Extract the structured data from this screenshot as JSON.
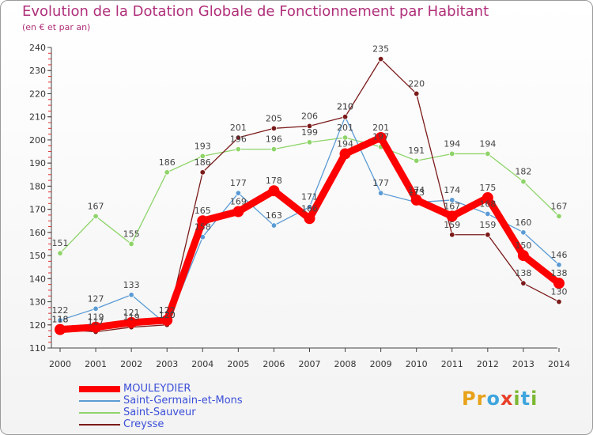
{
  "title": "Evolution de la Dotation Globale de Fonctionnement par Habitant",
  "subtitle": "(en € et par an)",
  "logo": {
    "text": "Proxiti",
    "letters": [
      {
        "char": "P",
        "color": "#e8a21a"
      },
      {
        "char": "r",
        "color": "#e8a21a"
      },
      {
        "char": "o",
        "color": "#3fa5dd"
      },
      {
        "char": "x",
        "color": "#e8402a"
      },
      {
        "char": "i",
        "color": "#7cb833"
      },
      {
        "char": "t",
        "color": "#3fa5dd"
      },
      {
        "char": "i",
        "color": "#7cb833"
      }
    ]
  },
  "chart_data": {
    "type": "line",
    "x": [
      "2000",
      "2001",
      "2002",
      "2003",
      "2004",
      "2005",
      "2006",
      "2007",
      "2008",
      "2009",
      "2010",
      "2011",
      "2012",
      "2013",
      "2014"
    ],
    "ylim": [
      110,
      240
    ],
    "yticks": [
      110,
      120,
      130,
      140,
      150,
      160,
      170,
      180,
      190,
      200,
      210,
      220,
      230,
      240
    ],
    "grid": false,
    "legend_position": "bottom-left",
    "series": [
      {
        "name": "MOULEYDIER",
        "color": "#ff0000",
        "emphasis": true,
        "values": [
          118,
          119,
          121,
          122,
          165,
          169,
          178,
          166,
          194,
          201,
          174,
          167,
          175,
          150,
          138
        ],
        "labels": [
          "118",
          "119",
          "121",
          "122",
          "165",
          "169",
          "178",
          "166",
          "194",
          "201",
          "174",
          "167",
          "175",
          "150",
          "138"
        ]
      },
      {
        "name": "Saint-Germain-et-Mons",
        "color": "#5b9bd5",
        "values": [
          122,
          127,
          133,
          120,
          158,
          177,
          163,
          171,
          210,
          177,
          173,
          174,
          168,
          160,
          146
        ],
        "labels": [
          "122",
          "127",
          "133",
          "120",
          "158",
          "177",
          "163",
          "171",
          "210",
          "177",
          "173",
          "174",
          "168",
          "160",
          "146"
        ]
      },
      {
        "name": "Saint-Sauveur",
        "color": "#8fd46a",
        "values": [
          151,
          167,
          155,
          186,
          193,
          196,
          196,
          199,
          201,
          197,
          191,
          194,
          194,
          182,
          167
        ],
        "labels": [
          "151",
          "167",
          "155",
          "186",
          "193",
          "196",
          "196",
          "199",
          "201",
          "197",
          "191",
          "194",
          "194",
          "182",
          "167"
        ]
      },
      {
        "name": "Creysse",
        "color": "#7b1a1a",
        "values": [
          118,
          117,
          119,
          120,
          186,
          201,
          205,
          206,
          210,
          235,
          220,
          159,
          159,
          138,
          130
        ],
        "labels": [
          "118",
          "117",
          "119",
          "120",
          "186",
          "201",
          "205",
          "206",
          "210",
          "235",
          "220",
          "159",
          "159",
          "138",
          "130"
        ]
      }
    ]
  }
}
